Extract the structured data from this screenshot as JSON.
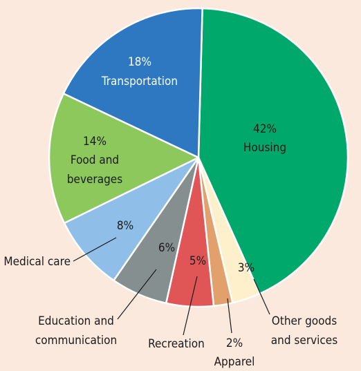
{
  "chart_data": {
    "type": "pie",
    "categories": [
      "Housing",
      "Other goods and services",
      "Apparel",
      "Recreation",
      "Education and communication",
      "Medical care",
      "Food and beverages",
      "Transportation"
    ],
    "values": [
      42,
      3,
      2,
      5,
      6,
      8,
      14,
      18
    ],
    "slice_labels": [
      {
        "pct": "42%",
        "lines": [
          "Housing"
        ]
      },
      {
        "pct": "3%",
        "lines": [
          "Other goods",
          "and services"
        ]
      },
      {
        "pct": "2%",
        "lines": [
          "Apparel"
        ]
      },
      {
        "pct": "5%",
        "lines": [
          "Recreation"
        ]
      },
      {
        "pct": "6%",
        "lines": [
          "Education and",
          "communication"
        ]
      },
      {
        "pct": "8%",
        "lines": [
          "Medical care"
        ]
      },
      {
        "pct": "14%",
        "lines": [
          "Food and",
          "beverages"
        ]
      },
      {
        "pct": "18%",
        "lines": [
          "Transportation"
        ]
      }
    ],
    "colors": [
      "#00a86b",
      "#fdf0cb",
      "#e2a06c",
      "#e05656",
      "#858f8f",
      "#8fbfe8",
      "#8cc85c",
      "#2e78c2"
    ],
    "title": ""
  }
}
